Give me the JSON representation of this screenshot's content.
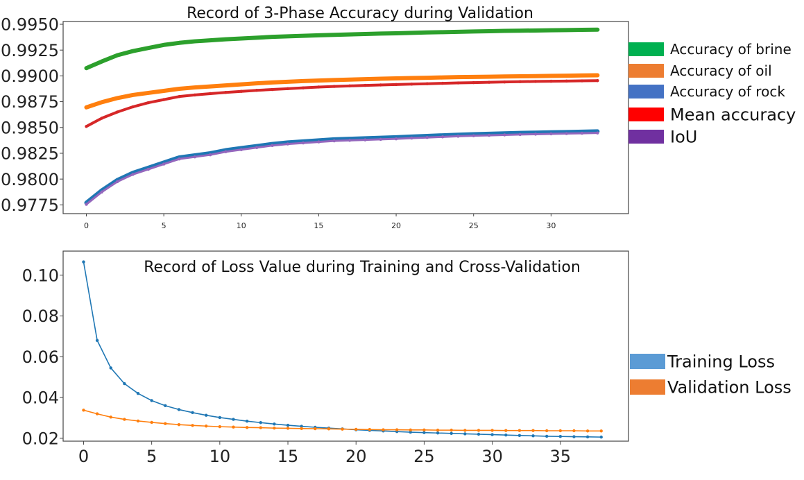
{
  "chart_data": [
    {
      "type": "line",
      "title": "Record of 3-Phase Accuracy during Validation",
      "xlabel": "",
      "ylabel": "",
      "xlim": [
        -1.5,
        35
      ],
      "ylim": [
        0.97665,
        0.99527
      ],
      "x_ticks": [
        0,
        5,
        10,
        15,
        20,
        25,
        30
      ],
      "x_tick_labels": [
        "0",
        "5",
        "10",
        "15",
        "20",
        "25",
        "30"
      ],
      "y_ticks": [
        0.9775,
        0.98,
        0.9825,
        0.985,
        0.9875,
        0.99,
        0.9925,
        0.995
      ],
      "y_tick_labels": [
        "0.9775",
        "0.9800",
        "0.9825",
        "0.9850",
        "0.9875",
        "0.9900",
        "0.9925",
        "0.9950"
      ],
      "grid": false,
      "legend_position": "right",
      "x": [
        0,
        1,
        2,
        3,
        4,
        5,
        6,
        7,
        8,
        9,
        10,
        11,
        12,
        13,
        14,
        15,
        16,
        17,
        18,
        19,
        20,
        21,
        22,
        23,
        24,
        25,
        26,
        27,
        28,
        29,
        30,
        31,
        32,
        33
      ],
      "series": [
        {
          "name": "Accuracy of brine",
          "color": "#2ca02c",
          "legend_color": "#00b050",
          "width": 6,
          "values": [
            0.99075,
            0.9914,
            0.992,
            0.9924,
            0.9927,
            0.993,
            0.9932,
            0.99335,
            0.99345,
            0.99355,
            0.99362,
            0.9937,
            0.99378,
            0.99383,
            0.99388,
            0.99393,
            0.99398,
            0.99402,
            0.99406,
            0.9941,
            0.99413,
            0.99417,
            0.99421,
            0.99424,
            0.99427,
            0.9943,
            0.99433,
            0.99436,
            0.99438,
            0.9944,
            0.99442,
            0.99444,
            0.99446,
            0.99448
          ]
        },
        {
          "name": "Accuracy of oil",
          "color": "#ff7f0e",
          "legend_color": "#ed7d31",
          "width": 6,
          "values": [
            0.98695,
            0.98745,
            0.98785,
            0.98815,
            0.98835,
            0.98855,
            0.98875,
            0.98888,
            0.98898,
            0.98908,
            0.98918,
            0.98928,
            0.98936,
            0.98943,
            0.9895,
            0.98955,
            0.9896,
            0.98964,
            0.98968,
            0.98972,
            0.98976,
            0.98979,
            0.98982,
            0.98985,
            0.98988,
            0.9899,
            0.98992,
            0.98994,
            0.98996,
            0.98998,
            0.99,
            0.99002,
            0.99004,
            0.99006
          ]
        },
        {
          "name": "Accuracy of rock",
          "color": "#1f77b4",
          "legend_color": "#4472c4",
          "width": 6,
          "values": [
            0.9777,
            0.9789,
            0.9799,
            0.9806,
            0.9811,
            0.9816,
            0.9821,
            0.9823,
            0.9825,
            0.9828,
            0.983,
            0.9832,
            0.9834,
            0.98355,
            0.98365,
            0.98375,
            0.98385,
            0.9839,
            0.98395,
            0.984,
            0.98405,
            0.98412,
            0.98418,
            0.98424,
            0.9843,
            0.98435,
            0.98439,
            0.98443,
            0.98447,
            0.9845,
            0.98453,
            0.98456,
            0.98459,
            0.98462
          ]
        },
        {
          "name": "Mean accuracy",
          "color": "#d62728",
          "legend_color": "#ff0000",
          "width": 4,
          "values": [
            0.9851,
            0.9859,
            0.9865,
            0.987,
            0.9874,
            0.9877,
            0.988,
            0.98815,
            0.98828,
            0.9884,
            0.9885,
            0.9886,
            0.98868,
            0.98876,
            0.98884,
            0.98892,
            0.98898,
            0.98903,
            0.98908,
            0.98912,
            0.98916,
            0.9892,
            0.98924,
            0.98928,
            0.98932,
            0.98935,
            0.98938,
            0.98941,
            0.98944,
            0.98946,
            0.98948,
            0.9895,
            0.98952,
            0.98954
          ]
        },
        {
          "name": "IoU",
          "color": "#9467bd",
          "legend_color": "#7030a0",
          "width": 3,
          "values": [
            0.97755,
            0.97875,
            0.97975,
            0.98045,
            0.98095,
            0.98145,
            0.98195,
            0.98215,
            0.98235,
            0.98265,
            0.98285,
            0.98305,
            0.98325,
            0.9834,
            0.9835,
            0.9836,
            0.9837,
            0.98375,
            0.9838,
            0.98385,
            0.9839,
            0.98397,
            0.98403,
            0.98409,
            0.98415,
            0.9842,
            0.98424,
            0.98428,
            0.98432,
            0.98435,
            0.98438,
            0.98441,
            0.98444,
            0.98447
          ]
        }
      ]
    },
    {
      "type": "line",
      "title": "Record of Loss Value during Training and Cross-Validation",
      "xlabel": "",
      "ylabel": "",
      "xlim": [
        -1.5,
        40
      ],
      "ylim": [
        0.0186,
        0.1118
      ],
      "x_ticks": [
        0,
        5,
        10,
        15,
        20,
        25,
        30,
        35
      ],
      "x_tick_labels": [
        "0",
        "5",
        "10",
        "15",
        "20",
        "25",
        "30",
        "35"
      ],
      "y_ticks": [
        0.02,
        0.04,
        0.06,
        0.08,
        0.1
      ],
      "y_tick_labels": [
        "0.02",
        "0.04",
        "0.06",
        "0.08",
        "0.10"
      ],
      "grid": false,
      "legend_position": "right",
      "x": [
        0,
        1,
        2,
        3,
        4,
        5,
        6,
        7,
        8,
        9,
        10,
        11,
        12,
        13,
        14,
        15,
        16,
        17,
        18,
        19,
        20,
        21,
        22,
        23,
        24,
        25,
        26,
        27,
        28,
        29,
        30,
        31,
        32,
        33,
        34,
        35,
        36,
        37,
        38
      ],
      "series": [
        {
          "name": "Training Loss",
          "color": "#1f77b4",
          "legend_color": "#5b9bd5",
          "width": 1.6,
          "values": [
            0.1065,
            0.068,
            0.0545,
            0.0468,
            0.042,
            0.0385,
            0.036,
            0.0341,
            0.0326,
            0.0313,
            0.0302,
            0.0293,
            0.0284,
            0.0277,
            0.027,
            0.0264,
            0.0259,
            0.0254,
            0.025,
            0.0246,
            0.0242,
            0.0239,
            0.0236,
            0.0233,
            0.023,
            0.0228,
            0.0226,
            0.0224,
            0.0222,
            0.022,
            0.0218,
            0.0216,
            0.0214,
            0.0212,
            0.021,
            0.0209,
            0.0208,
            0.0207,
            0.0206
          ]
        },
        {
          "name": "Validation Loss",
          "color": "#ff7f0e",
          "legend_color": "#ed7d31",
          "width": 1.6,
          "values": [
            0.0338,
            0.032,
            0.0304,
            0.0293,
            0.0285,
            0.0278,
            0.0272,
            0.0267,
            0.0263,
            0.026,
            0.0257,
            0.0255,
            0.0253,
            0.0252,
            0.025,
            0.0249,
            0.0248,
            0.0247,
            0.0246,
            0.0245,
            0.0244,
            0.0243,
            0.0242,
            0.0242,
            0.0241,
            0.0241,
            0.024,
            0.024,
            0.0239,
            0.0239,
            0.0239,
            0.0238,
            0.0238,
            0.0238,
            0.0237,
            0.0237,
            0.0237,
            0.0236,
            0.0236
          ]
        }
      ]
    }
  ]
}
